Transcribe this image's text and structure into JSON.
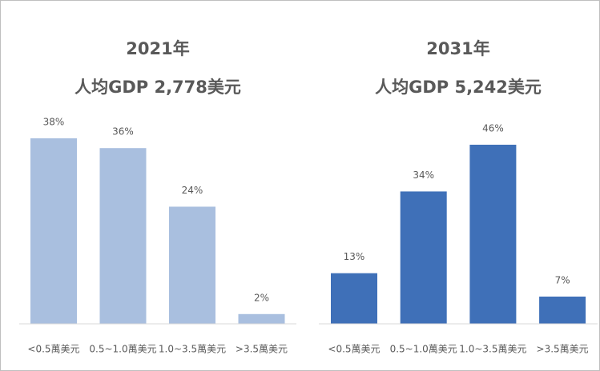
{
  "chart_data": [
    {
      "type": "bar",
      "title": "2021年",
      "subtitle": "人均GDP 2,778美元",
      "categories": [
        "<0.5萬美元",
        "0.5~1.0萬美元",
        "1.0~3.5萬美元",
        ">3.5萬美元"
      ],
      "values": [
        38,
        36,
        24,
        2
      ],
      "value_labels": [
        "38%",
        "36%",
        "24%",
        "2%"
      ],
      "color": "#a9bfdf"
    },
    {
      "type": "bar",
      "title": "2031年",
      "subtitle": "人均GDP 5,242美元",
      "categories": [
        "<0.5萬美元",
        "0.5~1.0萬美元",
        "1.0~3.5萬美元",
        ">3.5萬美元"
      ],
      "values": [
        13,
        34,
        46,
        7
      ],
      "value_labels": [
        "13%",
        "34%",
        "46%",
        "7%"
      ],
      "color": "#3f70b8"
    }
  ]
}
